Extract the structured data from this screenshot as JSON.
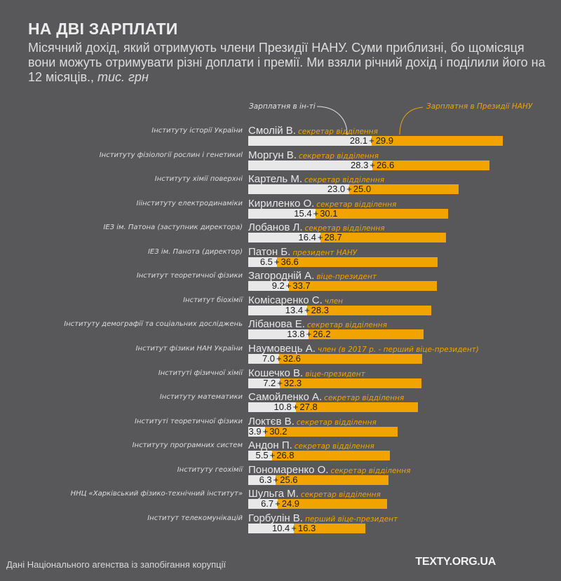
{
  "header": {
    "title": "НА ДВІ ЗАРПЛАТИ",
    "subtitle": "Місячний дохід, який отримують члени Президії НАНУ. Суми приблизні, бо щомісяця вони можуть отримувати різні доплати і премії. Ми взяли річний дохід і поділили його на 12 місяців.,",
    "unit": "тис. грн"
  },
  "colors": {
    "background": "#58585a",
    "institute_salary": "#e8e8e8",
    "presidium_salary": "#f1a400"
  },
  "footer": {
    "source": "Дані Національного агенства із запобігання корупції",
    "brand": "TEXTY.ORG.UA"
  },
  "chart_data": {
    "type": "bar",
    "orientation": "horizontal",
    "stacked": true,
    "title": "НА ДВІ ЗАРПЛАТИ",
    "unit": "тис. грн",
    "legend": [
      "Зарплатня в ін-ті",
      "Зарплатня в Президії НАНУ"
    ],
    "series": [
      {
        "name": "Зарплатня в ін-ті",
        "values": [
          28.1,
          28.3,
          23.0,
          15.4,
          16.4,
          6.5,
          9.2,
          13.4,
          13.8,
          7.0,
          7.2,
          10.8,
          3.9,
          5.5,
          6.3,
          6.7,
          10.4
        ]
      },
      {
        "name": "Зарплатня в Президії НАНУ",
        "values": [
          29.9,
          26.6,
          25.0,
          30.1,
          28.7,
          36.6,
          33.7,
          28.3,
          26.2,
          32.6,
          32.3,
          27.8,
          30.2,
          26.8,
          25.6,
          24.9,
          16.3
        ]
      }
    ],
    "rows": [
      {
        "institute": "Інституту історії України",
        "name": "Смолій В.",
        "role": "секретар відділення"
      },
      {
        "institute": "Інституту фізіології рослин і генетикиl",
        "name": "Моргун В.",
        "role": "секретар відділення"
      },
      {
        "institute": "Інституту хімії поверхні",
        "name": "Картель М.",
        "role": "секретар відділення"
      },
      {
        "institute": "Ііінституту електродинаміки",
        "name": "Кириленко О.",
        "role": "секретар відділення"
      },
      {
        "institute": "ІЕЗ ім. Патона (заступник директора)",
        "name": "Лобанов Л.",
        "role": "секретар відділення"
      },
      {
        "institute": "ІЕЗ ім. Панота (директор)",
        "name": "Патон Б.",
        "role": "президент НАНУ"
      },
      {
        "institute": "Інститут теоретичної фізики",
        "name": "Загородній А.",
        "role": "віце-президент"
      },
      {
        "institute": "Інститут біохімії",
        "name": "Комісаренко С.",
        "role": "член"
      },
      {
        "institute": "Інституту демографії та соціальних досліджень",
        "name": "Лібанова Е.",
        "role": "секретар відділення"
      },
      {
        "institute": "Інститут фізики НАН України",
        "name": "Наумовець А.",
        "role": "член (в 2017 р. - перший віце-президент)"
      },
      {
        "institute": "Інституті фізичної хімії",
        "name": "Кошечко В.",
        "role": "віце-президент"
      },
      {
        "institute": "Інституту математики",
        "name": "Самойленко А.",
        "role": "секретар відділення"
      },
      {
        "institute": "Інституті теоретичної фізики",
        "name": "Локтєв В.",
        "role": "секретар відділення"
      },
      {
        "institute": "Інституту програмних систем",
        "name": "Андон П.",
        "role": "секретар відділення"
      },
      {
        "institute": "Інституту геохімії",
        "name": "Пономаренко О.",
        "role": "секретар відділення"
      },
      {
        "institute": "ННЦ «Харківський фізико-технічний інститут»",
        "name": "Шульга М.",
        "role": "секретар відділення"
      },
      {
        "institute": "Інститут телекомунікацій",
        "name": "Горбулін В.",
        "role": "перший віце-президент"
      }
    ],
    "xlim": [
      0,
      60
    ],
    "grid": false,
    "legend_placement": "top-right"
  }
}
